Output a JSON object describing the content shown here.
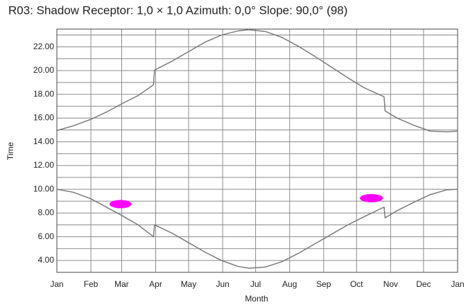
{
  "chart_data": {
    "type": "line",
    "title": "R03: Shadow  Receptor: 1,0 × 1,0  Azimuth: 0,0°  Slope: 90,0° (98)",
    "x_label": "Month",
    "y_label": "Time",
    "xlim": [
      0,
      365
    ],
    "xticks": [
      {
        "value": 0,
        "label": "Jan"
      },
      {
        "value": 31,
        "label": "Feb"
      },
      {
        "value": 59,
        "label": "Mar"
      },
      {
        "value": 90,
        "label": "Apr"
      },
      {
        "value": 120,
        "label": "May"
      },
      {
        "value": 151,
        "label": "Jun"
      },
      {
        "value": 181,
        "label": "Jul"
      },
      {
        "value": 212,
        "label": "Aug"
      },
      {
        "value": 243,
        "label": "Sep"
      },
      {
        "value": 273,
        "label": "Oct"
      },
      {
        "value": 304,
        "label": "Nov"
      },
      {
        "value": 334,
        "label": "Dec"
      },
      {
        "value": 365,
        "label": "Jan"
      }
    ],
    "ylim": [
      3,
      23.5
    ],
    "yticks": [
      {
        "value": 4,
        "label": "4.00"
      },
      {
        "value": 6,
        "label": "6.00"
      },
      {
        "value": 8,
        "label": "8.00"
      },
      {
        "value": 10,
        "label": "10.00"
      },
      {
        "value": 12,
        "label": "12.00"
      },
      {
        "value": 14,
        "label": "14.00"
      },
      {
        "value": 16,
        "label": "16.00"
      },
      {
        "value": 18,
        "label": "18.00"
      },
      {
        "value": 20,
        "label": "20.00"
      },
      {
        "value": 22,
        "label": "22.00"
      }
    ],
    "y_minor_grid": [
      5,
      7,
      9,
      11,
      13,
      15,
      17,
      19,
      21,
      23
    ],
    "grid": true,
    "series": [
      {
        "color": "#7a7a7a",
        "x": [
          0,
          15,
          31,
          45,
          59,
          74,
          88,
          89,
          105,
          120,
          135,
          150,
          165,
          175,
          190,
          205,
          220,
          235,
          250,
          265,
          280,
          298,
          299,
          310,
          325,
          340,
          355,
          365
        ],
        "values": [
          14.95,
          15.35,
          15.9,
          16.5,
          17.2,
          17.9,
          18.8,
          20.05,
          20.8,
          21.6,
          22.4,
          23.0,
          23.35,
          23.45,
          23.3,
          22.8,
          22.05,
          21.2,
          20.3,
          19.4,
          18.55,
          17.8,
          16.6,
          16.0,
          15.4,
          14.9,
          14.85,
          14.9
        ]
      },
      {
        "color": "#7a7a7a",
        "x": [
          0,
          15,
          31,
          45,
          59,
          74,
          88,
          89,
          105,
          120,
          135,
          150,
          165,
          175,
          190,
          205,
          220,
          235,
          250,
          265,
          280,
          298,
          299,
          310,
          325,
          340,
          355,
          365
        ],
        "values": [
          10.0,
          9.75,
          9.2,
          8.5,
          7.8,
          7.0,
          6.0,
          7.0,
          6.3,
          5.5,
          4.7,
          4.0,
          3.5,
          3.35,
          3.45,
          3.9,
          4.6,
          5.4,
          6.2,
          7.0,
          7.7,
          8.5,
          7.6,
          8.2,
          8.9,
          9.55,
          9.95,
          10.0
        ]
      }
    ],
    "shadow_color": "#ff00ff",
    "shadow_periods": [
      {
        "x": [
          48,
          68
        ],
        "y": [
          8.4,
          9.1
        ]
      },
      {
        "x": [
          276,
          297
        ],
        "y": [
          8.9,
          9.6
        ]
      }
    ]
  }
}
